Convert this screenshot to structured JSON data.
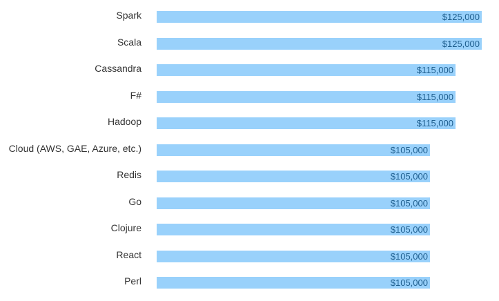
{
  "chart_data": {
    "type": "bar",
    "orientation": "horizontal",
    "title": "",
    "xlabel": "",
    "ylabel": "",
    "categories": [
      "Spark",
      "Scala",
      "Cassandra",
      "F#",
      "Hadoop",
      "Cloud (AWS, GAE, Azure, etc.)",
      "Redis",
      "Go",
      "Clojure",
      "React",
      "Perl"
    ],
    "values": [
      125000,
      125000,
      115000,
      115000,
      115000,
      105000,
      105000,
      105000,
      105000,
      105000,
      105000
    ],
    "value_labels": [
      "$125,000",
      "$125,000",
      "$115,000",
      "$115,000",
      "$115,000",
      "$105,000",
      "$105,000",
      "$105,000",
      "$105,000",
      "$105,000",
      "$105,000"
    ],
    "xlim": [
      0,
      125000
    ],
    "grid": false,
    "legend": null,
    "bar_color": "#99d1fb",
    "label_color": "#1f5f8f"
  }
}
